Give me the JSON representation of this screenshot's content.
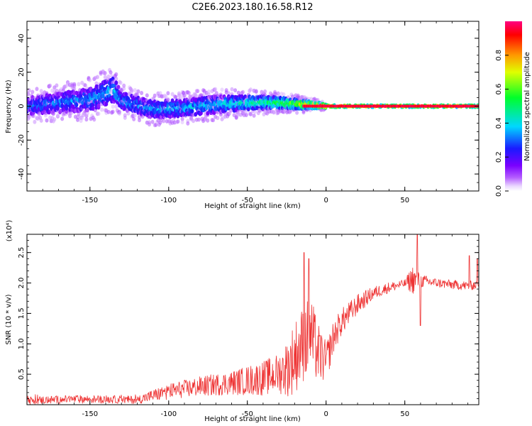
{
  "title": "C2E6.2023.180.16.58.R12",
  "chart_data": [
    {
      "type": "heatmap",
      "xlabel": "Height of straight line (km)",
      "ylabel": "Frequency (Hz)",
      "xlim": [
        -190,
        97
      ],
      "ylim": [
        -50,
        50
      ],
      "x_ticks": [
        -150,
        -100,
        -50,
        0,
        50
      ],
      "y_ticks": [
        -40,
        -20,
        0,
        20,
        40
      ],
      "x_tick_labels": [
        "-150",
        "-100",
        "-50",
        "0",
        "50"
      ],
      "y_tick_labels": [
        "-40",
        "-20",
        "0",
        "20",
        "40"
      ],
      "colorbar": {
        "label": "Normalized spectral amplitude",
        "range": [
          0,
          1
        ],
        "ticks": [
          0.0,
          0.2,
          0.4,
          0.6,
          0.8
        ],
        "tick_labels": [
          "0.0",
          "0.2",
          "0.4",
          "0.6",
          "0.8"
        ],
        "colormap": "rainbow (white-violet-blue-cyan-green-yellow-red-magenta)"
      },
      "ridge": {
        "x": [
          -190,
          -170,
          -150,
          -140,
          -135,
          -130,
          -110,
          -90,
          -70,
          -50,
          -30,
          -15,
          -5,
          0,
          15,
          50,
          97
        ],
        "center": [
          0,
          2,
          4,
          8,
          10,
          3,
          -2,
          -1,
          1,
          2,
          2,
          1,
          0.5,
          0,
          0,
          0,
          0
        ],
        "spread": [
          6,
          7,
          8,
          9,
          9,
          6,
          6,
          6,
          6,
          5,
          4,
          3,
          2,
          1.2,
          1,
          1,
          1
        ],
        "amplitude": [
          0.3,
          0.32,
          0.34,
          0.36,
          0.38,
          0.34,
          0.34,
          0.36,
          0.38,
          0.45,
          0.55,
          0.75,
          0.85,
          0.95,
          0.95,
          0.95,
          0.95
        ]
      }
    },
    {
      "type": "line",
      "xlabel": "Height of straight line (km)",
      "ylabel": "SNR (10 * v/v)",
      "y_scale_label": "(x10⁴)",
      "y_scale": 10000,
      "xlim": [
        -190,
        97
      ],
      "ylim": [
        0,
        2.8
      ],
      "x_ticks": [
        -150,
        -100,
        -50,
        0,
        50
      ],
      "y_ticks": [
        0.5,
        1.0,
        1.5,
        2.0,
        2.5
      ],
      "x_tick_labels": [
        "-150",
        "-100",
        "-50",
        "0",
        "50"
      ],
      "y_tick_labels": [
        "0.5",
        "1.0",
        "1.5",
        "2.0",
        "2.5"
      ],
      "series": [
        {
          "name": "SNR",
          "color": "#ee3333",
          "trend_x": [
            -190,
            -160,
            -140,
            -120,
            -110,
            -100,
            -80,
            -60,
            -40,
            -25,
            -20,
            -15,
            -10,
            -5,
            0,
            5,
            10,
            20,
            30,
            40,
            50,
            60,
            70,
            80,
            90,
            97
          ],
          "trend_y": [
            0.05,
            0.07,
            0.07,
            0.06,
            0.12,
            0.18,
            0.25,
            0.3,
            0.35,
            0.45,
            0.6,
            0.8,
            0.95,
            0.7,
            0.6,
            1.05,
            1.3,
            1.6,
            1.8,
            1.9,
            1.97,
            2.0,
            1.98,
            1.95,
            1.93,
            1.95
          ],
          "noise_x": [
            -190,
            -120,
            -100,
            -60,
            -30,
            -20,
            -10,
            0,
            10,
            30,
            50,
            55,
            60,
            70,
            97
          ],
          "noise_y": [
            0.06,
            0.06,
            0.12,
            0.18,
            0.3,
            0.55,
            0.6,
            0.3,
            0.2,
            0.1,
            0.06,
            0.22,
            0.1,
            0.07,
            0.07
          ],
          "spikes": [
            {
              "x": -14,
              "y": 2.5
            },
            {
              "x": -11,
              "y": 2.4
            },
            {
              "x": 58,
              "y": 2.8
            },
            {
              "x": 60,
              "y": 1.3
            },
            {
              "x": 91,
              "y": 2.45
            },
            {
              "x": 96,
              "y": 2.4
            }
          ]
        }
      ]
    }
  ]
}
